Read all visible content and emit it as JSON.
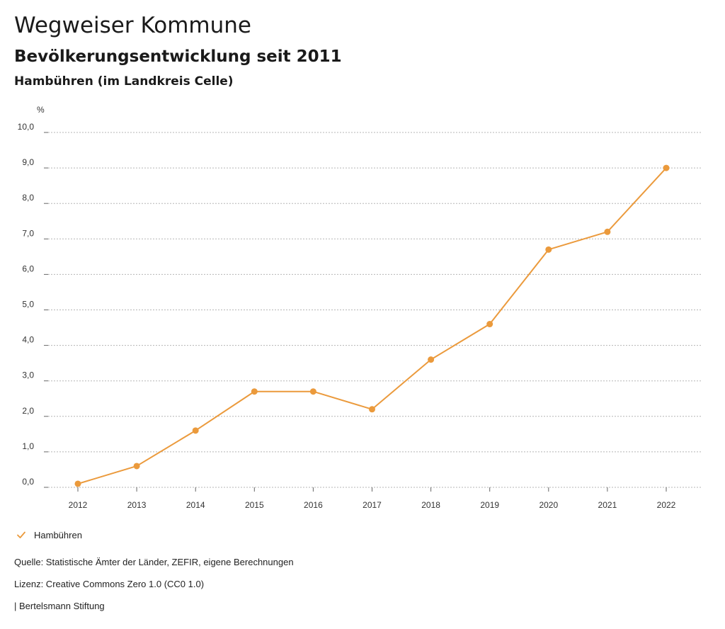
{
  "header": {
    "title": "Wegweiser Kommune",
    "subtitle": "Bevölkerungsentwicklung seit 2011",
    "region": "Hambühren (im Landkreis Celle)"
  },
  "chart_data": {
    "type": "line",
    "ylabel": "%",
    "ylim": [
      0,
      10
    ],
    "yticks": [
      "0,0",
      "1,0",
      "2,0",
      "3,0",
      "4,0",
      "5,0",
      "6,0",
      "7,0",
      "8,0",
      "9,0",
      "10,0"
    ],
    "categories": [
      "2012",
      "2013",
      "2014",
      "2015",
      "2016",
      "2017",
      "2018",
      "2019",
      "2020",
      "2021",
      "2022"
    ],
    "series": [
      {
        "name": "Hambühren",
        "color": "#eb9a3c",
        "values": [
          0.1,
          0.6,
          1.6,
          2.7,
          2.7,
          2.2,
          3.6,
          4.6,
          6.7,
          7.2,
          9.0
        ]
      }
    ],
    "grid": true,
    "legend": "bottom-left"
  },
  "footer": {
    "source": "Quelle: Statistische Ämter der Länder, ZEFIR, eigene Berechnungen",
    "license": "Lizenz: Creative Commons Zero 1.0 (CC0 1.0)",
    "publisher": "| Bertelsmann Stiftung"
  }
}
